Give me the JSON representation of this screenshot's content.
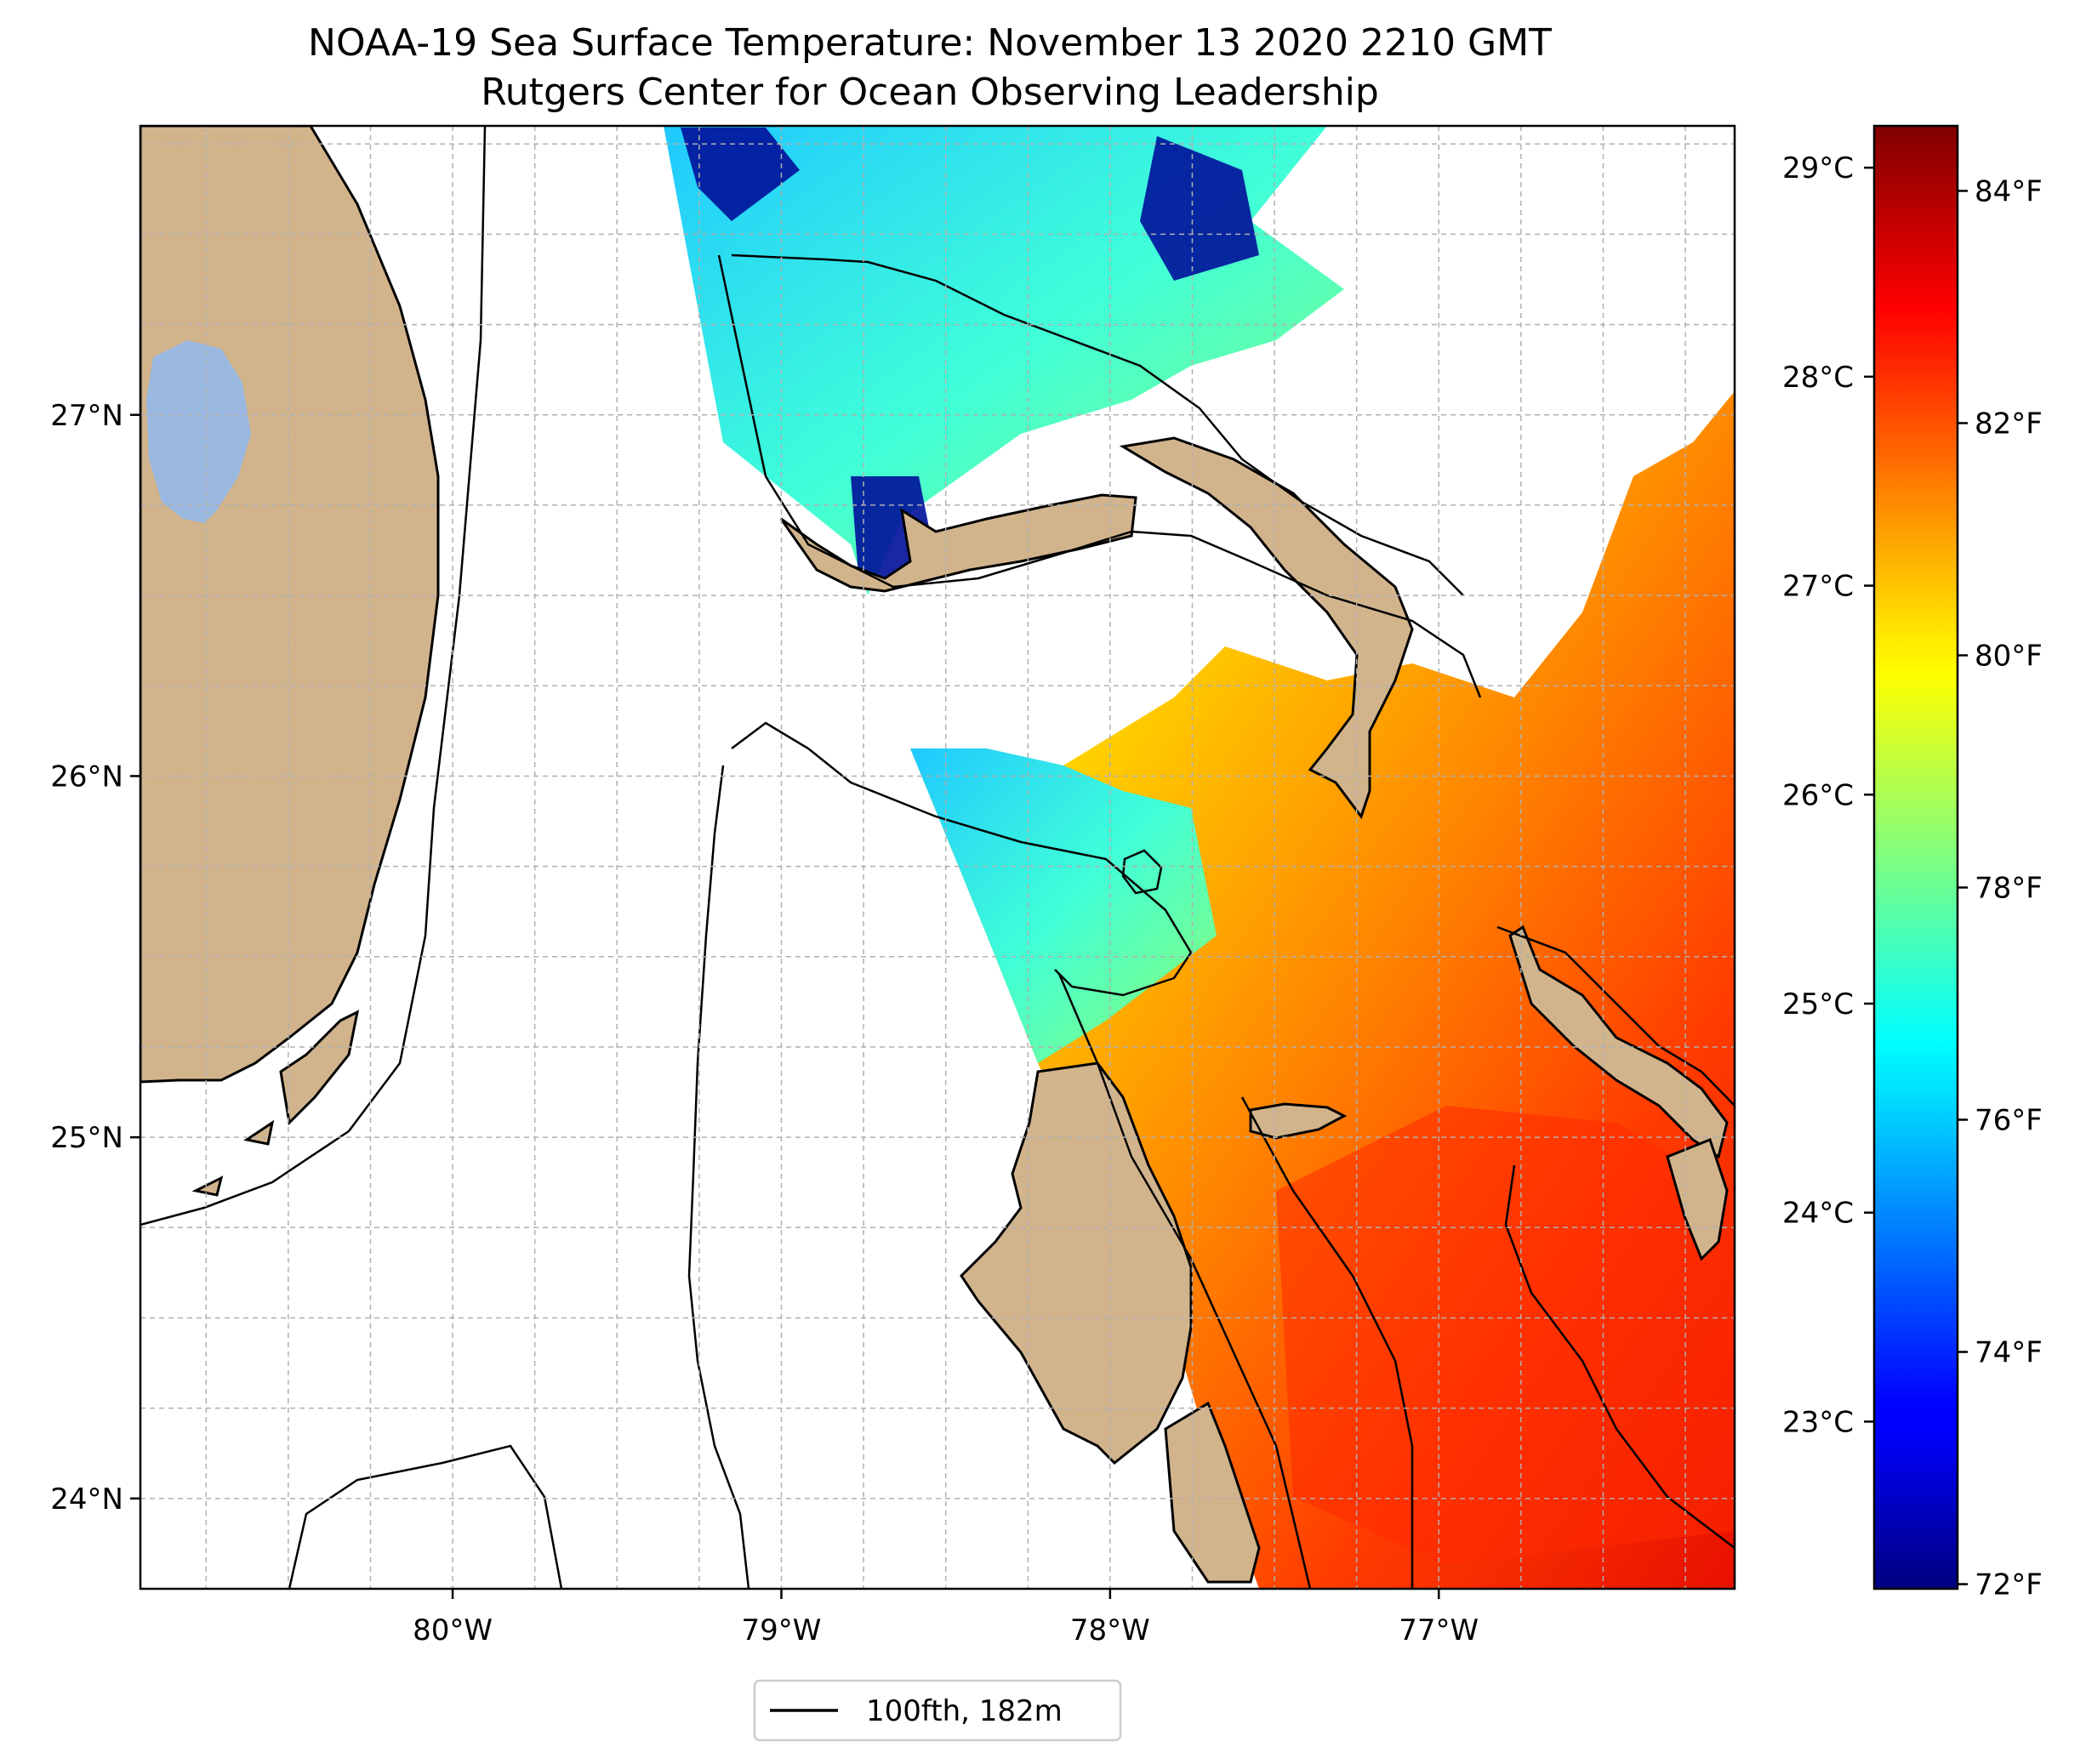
{
  "figure": {
    "title_line1": "NOAA-19 Sea Surface Temperature: November 13 2020 2210 GMT",
    "title_line2": "Rutgers Center for Ocean Observing Leadership"
  },
  "map": {
    "lon_range": [
      -80.95,
      -76.1
    ],
    "lat_range": [
      23.75,
      27.8
    ],
    "x_ticks": [
      {
        "value": -80,
        "label": "80°W"
      },
      {
        "value": -79,
        "label": "79°W"
      },
      {
        "value": -78,
        "label": "78°W"
      },
      {
        "value": -77,
        "label": "77°W"
      }
    ],
    "y_ticks": [
      {
        "value": 24,
        "label": "24°N"
      },
      {
        "value": 25,
        "label": "25°N"
      },
      {
        "value": 26,
        "label": "26°N"
      },
      {
        "value": 27,
        "label": "27°N"
      }
    ],
    "gridlines": true,
    "land_color": "#d2b48c",
    "lake_color": "#9ab8e0"
  },
  "legend": {
    "label": "100fth, 182m",
    "placement": "bottom-center"
  },
  "colorbar": {
    "colormap": "jet",
    "range_c": [
      22.2,
      29.2
    ],
    "celsius_ticks": [
      {
        "value": 29,
        "label": "29°C"
      },
      {
        "value": 28,
        "label": "28°C"
      },
      {
        "value": 27,
        "label": "27°C"
      },
      {
        "value": 26,
        "label": "26°C"
      },
      {
        "value": 25,
        "label": "25°C"
      },
      {
        "value": 24,
        "label": "24°C"
      },
      {
        "value": 23,
        "label": "23°C"
      }
    ],
    "fahrenheit_ticks": [
      {
        "value": 84,
        "label": "84°F"
      },
      {
        "value": 82,
        "label": "82°F"
      },
      {
        "value": 80,
        "label": "80°F"
      },
      {
        "value": 78,
        "label": "78°F"
      },
      {
        "value": 76,
        "label": "76°F"
      },
      {
        "value": 74,
        "label": "74°F"
      },
      {
        "value": 72,
        "label": "72°F"
      }
    ]
  }
}
